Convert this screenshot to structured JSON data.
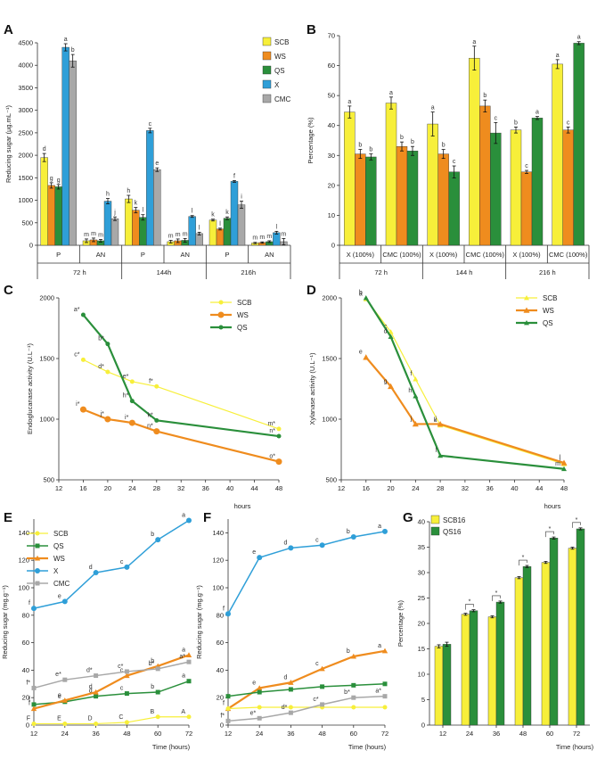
{
  "colors": {
    "SCB": "#f7ef3a",
    "WS": "#ef8c1e",
    "QS": "#2a8f3b",
    "X": "#2f9fd8",
    "CMC": "#a8a8a8"
  },
  "panels": {
    "A": "A",
    "B": "B",
    "C": "C",
    "D": "D",
    "E": "E",
    "F": "F",
    "G": "G"
  },
  "chart_data": [
    {
      "panel": "A",
      "type": "bar",
      "ylabel": "Reducing sugar (µg.mL⁻¹)",
      "ylim": [
        0,
        4500
      ],
      "yticks": [
        "0",
        "500",
        "1000",
        "1500",
        "2000",
        "2500",
        "3000",
        "3500",
        "4000",
        "4500"
      ],
      "legend": [
        "SCB",
        "WS",
        "QS",
        "X",
        "CMC"
      ],
      "groups": [
        {
          "label": "P",
          "time": "72 h"
        },
        {
          "label": "AN",
          "time": "72 h"
        },
        {
          "label": "P",
          "time": "144h"
        },
        {
          "label": "AN",
          "time": "144h"
        },
        {
          "label": "P",
          "time": "216h"
        },
        {
          "label": "AN",
          "time": "216h"
        }
      ],
      "times": [
        "72 h",
        "144h",
        "216h"
      ],
      "series": [
        {
          "name": "SCB",
          "values": [
            1950,
            100,
            1030,
            80,
            560,
            50
          ],
          "errors": [
            90,
            40,
            80,
            30,
            20,
            15
          ],
          "letters": [
            "d",
            "m",
            "h",
            "m",
            "k",
            "m"
          ]
        },
        {
          "name": "WS",
          "values": [
            1330,
            120,
            780,
            100,
            360,
            60
          ],
          "errors": [
            60,
            40,
            60,
            40,
            20,
            15
          ],
          "letters": [
            "g",
            "m",
            "k",
            "m",
            "l",
            "m"
          ]
        },
        {
          "name": "QS",
          "values": [
            1300,
            100,
            620,
            110,
            600,
            80
          ],
          "errors": [
            50,
            30,
            60,
            40,
            30,
            20
          ],
          "letters": [
            "g",
            "m",
            "l",
            "m",
            "k",
            "m"
          ]
        },
        {
          "name": "X",
          "values": [
            4400,
            980,
            2550,
            640,
            1420,
            280
          ],
          "errors": [
            80,
            60,
            50,
            20,
            20,
            30
          ],
          "letters": [
            "a",
            "h",
            "c",
            "l",
            "f",
            "l"
          ]
        },
        {
          "name": "CMC",
          "values": [
            4100,
            590,
            1680,
            260,
            900,
            80
          ],
          "errors": [
            140,
            40,
            40,
            30,
            80,
            70
          ],
          "letters": [
            "b",
            "j",
            "e",
            "l",
            "i",
            "m"
          ]
        }
      ]
    },
    {
      "panel": "B",
      "type": "bar",
      "ylabel": "Percentage (%)",
      "ylim": [
        0,
        70
      ],
      "yticks": [
        "0",
        "10",
        "20",
        "30",
        "40",
        "50",
        "60",
        "70"
      ],
      "groups": [
        {
          "label": "X (100%)",
          "time": "72 h"
        },
        {
          "label": "CMC (100%)",
          "time": "72 h"
        },
        {
          "label": "X (100%)",
          "time": "144 h"
        },
        {
          "label": "CMC (100%)",
          "time": "144 h"
        },
        {
          "label": "X (100%)",
          "time": "216 h"
        },
        {
          "label": "CMC (100%)",
          "time": "216 h"
        }
      ],
      "times": [
        "72 h",
        "144 h",
        "216 h"
      ],
      "series": [
        {
          "name": "SCB",
          "values": [
            44.5,
            47.5,
            40.5,
            62.5,
            38.5,
            60.5
          ],
          "errors": [
            2,
            2,
            4,
            4,
            1,
            1.5
          ],
          "letters": [
            "a",
            "a",
            "a",
            "a",
            "b",
            "a"
          ]
        },
        {
          "name": "WS",
          "values": [
            30.5,
            33,
            30.5,
            46.5,
            24.5,
            38.5
          ],
          "errors": [
            1.5,
            1.5,
            1.5,
            2,
            0.5,
            1
          ],
          "letters": [
            "b",
            "b",
            "b",
            "b",
            "c",
            "c"
          ]
        },
        {
          "name": "QS",
          "values": [
            29.5,
            31.5,
            24.5,
            37.5,
            42.5,
            67.5
          ],
          "errors": [
            1,
            1.5,
            2,
            3.5,
            0.5,
            0.5
          ],
          "letters": [
            "b",
            "b",
            "c",
            "c",
            "a",
            "a"
          ]
        }
      ]
    },
    {
      "panel": "C",
      "type": "line",
      "ylabel": "Endoglucanase activity (U.L⁻¹)",
      "xlabel": "hours",
      "xlim": [
        12,
        48
      ],
      "ylim": [
        500,
        2000
      ],
      "xticks": [
        "12",
        "16",
        "20",
        "24",
        "28",
        "32",
        "36",
        "40",
        "44",
        "48"
      ],
      "yticks": [
        "500",
        "1000",
        "1500",
        "2000"
      ],
      "legend": [
        "SCB",
        "WS",
        "QS"
      ],
      "series": [
        {
          "name": "SCB",
          "x": [
            16,
            20,
            24,
            28,
            48
          ],
          "y": [
            1490,
            1390,
            1310,
            1270,
            920
          ],
          "letters": [
            "c*",
            "d*",
            "e*",
            "f*",
            "m*"
          ]
        },
        {
          "name": "WS",
          "x": [
            16,
            20,
            24,
            28,
            48
          ],
          "y": [
            1080,
            1000,
            970,
            900,
            650
          ],
          "letters": [
            "i*",
            "j*",
            "i*",
            "n*",
            "o*"
          ]
        },
        {
          "name": "QS",
          "x": [
            16,
            20,
            24,
            28,
            48
          ],
          "y": [
            1860,
            1620,
            1150,
            990,
            860
          ],
          "letters": [
            "a*",
            "b*",
            "h*",
            "k*",
            "n*"
          ]
        }
      ]
    },
    {
      "panel": "D",
      "type": "line",
      "ylabel": "Xylanase activity (U.L⁻¹)",
      "xlabel": "hours",
      "xlim": [
        12,
        48
      ],
      "ylim": [
        500,
        2000
      ],
      "xticks": [
        "12",
        "16",
        "20",
        "24",
        "28",
        "32",
        "36",
        "40",
        "44",
        "48"
      ],
      "yticks": [
        "500",
        "1000",
        "1500",
        "2000"
      ],
      "legend": [
        "SCB",
        "WS",
        "QS"
      ],
      "series": [
        {
          "name": "SCB",
          "x": [
            16,
            20,
            24,
            28,
            48
          ],
          "y": [
            1990,
            1720,
            1330,
            950,
            630
          ],
          "letters": [
            "a",
            "c",
            "f",
            "k",
            "i"
          ]
        },
        {
          "name": "WS",
          "x": [
            16,
            20,
            24,
            28,
            48
          ],
          "y": [
            1510,
            1270,
            960,
            960,
            640
          ],
          "letters": [
            "e",
            "g",
            "j",
            "j",
            "l"
          ]
        },
        {
          "name": "QS",
          "x": [
            16,
            20,
            24,
            28,
            48
          ],
          "y": [
            2000,
            1680,
            1190,
            700,
            590
          ],
          "letters": [
            "b",
            "d",
            "h",
            "l",
            "m"
          ]
        }
      ]
    },
    {
      "panel": "E",
      "type": "line",
      "ylabel": "Reducing sugar (mg.g⁻¹)",
      "xlabel": "Time (hours)",
      "xlim": [
        12,
        72
      ],
      "ylim": [
        0,
        150
      ],
      "xticks": [
        "12",
        "24",
        "36",
        "48",
        "60",
        "72"
      ],
      "yticks": [
        "0",
        "20",
        "40",
        "60",
        "80",
        "100",
        "120",
        "140"
      ],
      "legend": [
        "SCB",
        "QS",
        "WS",
        "X",
        "CMC"
      ],
      "series": [
        {
          "name": "SCB",
          "x": [
            12,
            24,
            36,
            48,
            60,
            72
          ],
          "y": [
            1,
            1,
            1,
            2,
            6,
            6
          ],
          "letters": [
            "F",
            "E",
            "D",
            "C",
            "B",
            "A"
          ]
        },
        {
          "name": "QS",
          "x": [
            12,
            24,
            36,
            48,
            60,
            72
          ],
          "y": [
            15,
            17,
            21,
            23,
            24,
            32
          ],
          "letters": [
            "f",
            "e",
            "d",
            "c",
            "b",
            "a"
          ]
        },
        {
          "name": "WS",
          "x": [
            12,
            24,
            36,
            48,
            60,
            72
          ],
          "y": [
            12,
            18,
            24,
            36,
            43,
            51
          ],
          "letters": [
            "f",
            "e",
            "d",
            "c",
            "b",
            "a"
          ]
        },
        {
          "name": "X",
          "x": [
            12,
            24,
            36,
            48,
            60,
            72
          ],
          "y": [
            85,
            90,
            111,
            115,
            135,
            149
          ],
          "letters": [
            "f",
            "e",
            "d",
            "c",
            "b",
            "a"
          ]
        },
        {
          "name": "CMC",
          "x": [
            12,
            24,
            36,
            48,
            60,
            72
          ],
          "y": [
            27,
            33,
            36,
            39,
            41,
            46
          ],
          "letters": [
            "f*",
            "e*",
            "d*",
            "c*",
            "b*",
            "a*"
          ]
        }
      ]
    },
    {
      "panel": "F",
      "type": "line",
      "ylabel": "Reducing sugar (mg.g⁻¹)",
      "xlabel": "Time (hours)",
      "xlim": [
        12,
        72
      ],
      "ylim": [
        0,
        150
      ],
      "xticks": [
        "12",
        "24",
        "36",
        "48",
        "60",
        "72"
      ],
      "yticks": [
        "0",
        "20",
        "40",
        "60",
        "80",
        "100",
        "120",
        "140"
      ],
      "series": [
        {
          "name": "X",
          "x": [
            12,
            24,
            36,
            48,
            60,
            72
          ],
          "y": [
            81,
            122,
            129,
            131,
            137,
            141
          ],
          "letters": [
            "f",
            "e",
            "d",
            "c",
            "b",
            "a"
          ]
        },
        {
          "name": "WS",
          "x": [
            12,
            24,
            36,
            48,
            60,
            72
          ],
          "y": [
            12,
            27,
            31,
            41,
            50,
            54
          ],
          "letters": [
            "f",
            "e",
            "d",
            "c",
            "b",
            "a"
          ]
        },
        {
          "name": "QS",
          "x": [
            12,
            24,
            36,
            48,
            60,
            72
          ],
          "y": [
            21,
            24,
            26,
            28,
            29,
            30
          ],
          "letters": [
            "",
            "",
            "",
            "",
            "",
            ""
          ]
        },
        {
          "name": "SCB",
          "x": [
            12,
            24,
            36,
            48,
            60,
            72
          ],
          "y": [
            12,
            13,
            13,
            13,
            13,
            13
          ],
          "letters": [
            "",
            "",
            "",
            "",
            "",
            ""
          ]
        },
        {
          "name": "CMC",
          "x": [
            12,
            24,
            36,
            48,
            60,
            72
          ],
          "y": [
            3,
            5,
            9,
            15,
            20,
            21
          ],
          "letters": [
            "f*",
            "e*",
            "d*",
            "c*",
            "b*",
            "a*"
          ]
        }
      ]
    },
    {
      "panel": "G",
      "type": "bar",
      "ylabel": "Percentage (%)",
      "xlabel": "Time (hours)",
      "ylim": [
        0,
        40
      ],
      "yticks": [
        "0",
        "5",
        "10",
        "15",
        "20",
        "25",
        "30",
        "35",
        "40"
      ],
      "categories": [
        "12",
        "24",
        "36",
        "48",
        "60",
        "72"
      ],
      "legend": [
        "SCB16",
        "QS16"
      ],
      "series": [
        {
          "name": "SCB16",
          "values": [
            15.5,
            21.8,
            21.3,
            29.0,
            32.0,
            34.8
          ],
          "errors": [
            0.3,
            0.2,
            0.2,
            0.2,
            0.2,
            0.2
          ]
        },
        {
          "name": "QS16",
          "values": [
            15.9,
            22.5,
            24.2,
            31.2,
            36.8,
            38.6
          ],
          "errors": [
            0.4,
            0.2,
            0.2,
            0.2,
            0.2,
            0.2
          ]
        }
      ],
      "significance": [
        "",
        "*",
        "*",
        "*",
        "*",
        "*"
      ]
    }
  ]
}
